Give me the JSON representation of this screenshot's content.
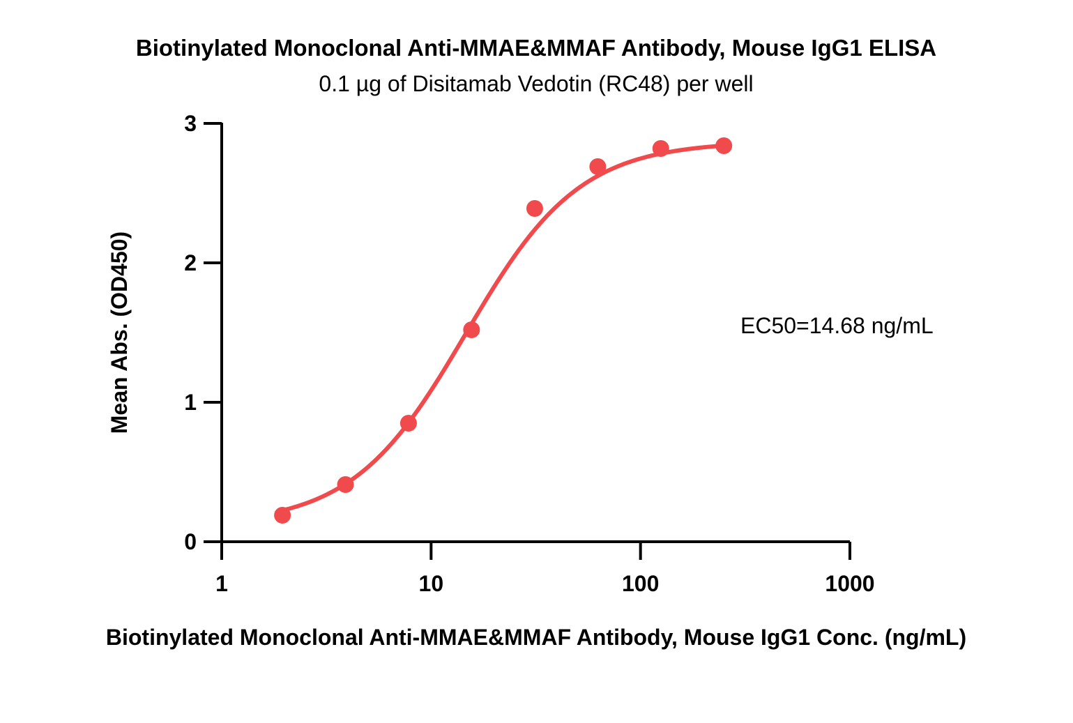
{
  "chart_data": {
    "type": "scatter",
    "title": "Biotinylated Monoclonal Anti-MMAE&MMAF Antibody, Mouse IgG1 ELISA",
    "subtitle": "0.1 µg of Disitamab Vedotin (RC48) per well",
    "xlabel": "Biotinylated Monoclonal Anti-MMAE&MMAF Antibody, Mouse IgG1 Conc. (ng/mL)",
    "ylabel": "Mean Abs. (OD450)",
    "x_scale": "log",
    "xlim": [
      1,
      1000
    ],
    "ylim": [
      0,
      3
    ],
    "x_ticks": [
      1,
      10,
      100,
      1000
    ],
    "x_tick_labels": [
      "1",
      "10",
      "100",
      "1000"
    ],
    "y_ticks": [
      0,
      1,
      2,
      3
    ],
    "y_tick_labels": [
      "0",
      "1",
      "2",
      "3"
    ],
    "grid": false,
    "series": [
      {
        "color": "#f04a4c",
        "x": [
          1.95,
          3.9,
          7.8,
          15.6,
          31.25,
          62.5,
          125,
          250
        ],
        "y": [
          0.19,
          0.41,
          0.85,
          1.52,
          2.39,
          2.69,
          2.82,
          2.84
        ]
      }
    ],
    "fit": {
      "type": "sigmoidal",
      "color": "#f04a4c",
      "bottom": 0.12,
      "top": 2.87,
      "ec50": 14.68,
      "hill": 1.6
    },
    "annotations": [
      {
        "text": "EC50=14.68 ng/mL"
      }
    ]
  }
}
